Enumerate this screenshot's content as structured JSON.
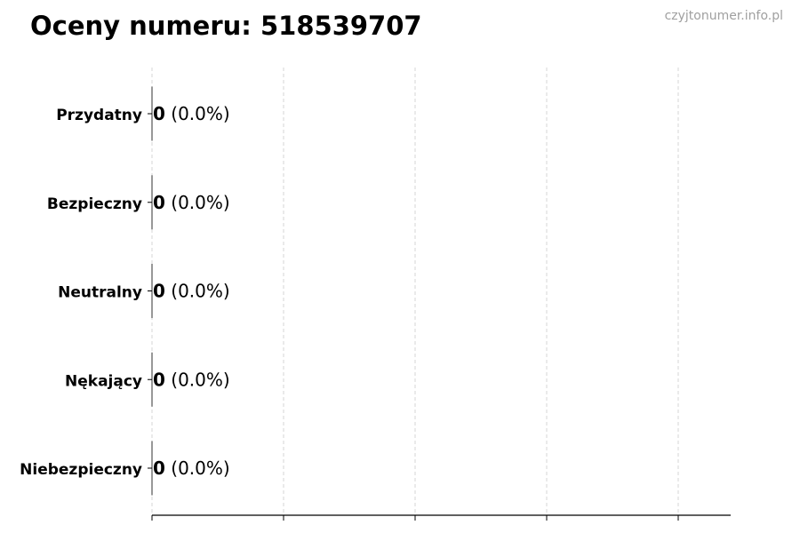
{
  "chart_data": {
    "type": "bar",
    "orientation": "horizontal",
    "title": "Oceny numeru: 518539707",
    "watermark": "czyjtonumer.info.pl",
    "categories": [
      "Przydatny",
      "Bezpieczny",
      "Neutralny",
      "Nękający",
      "Niebezpieczny"
    ],
    "values": [
      0,
      0,
      0,
      0,
      0
    ],
    "percent_labels": [
      "(0.0%)",
      "(0.0%)",
      "(0.0%)",
      "(0.0%)",
      "(0.0%)"
    ],
    "xlabel": "",
    "ylabel": "",
    "x_tick_labels_shown": false,
    "grid": "vertical dashed",
    "legend": "none",
    "colors": {
      "bar_edge": "#333333",
      "grid": "#cccccc",
      "watermark": "#a0a0a0"
    }
  }
}
